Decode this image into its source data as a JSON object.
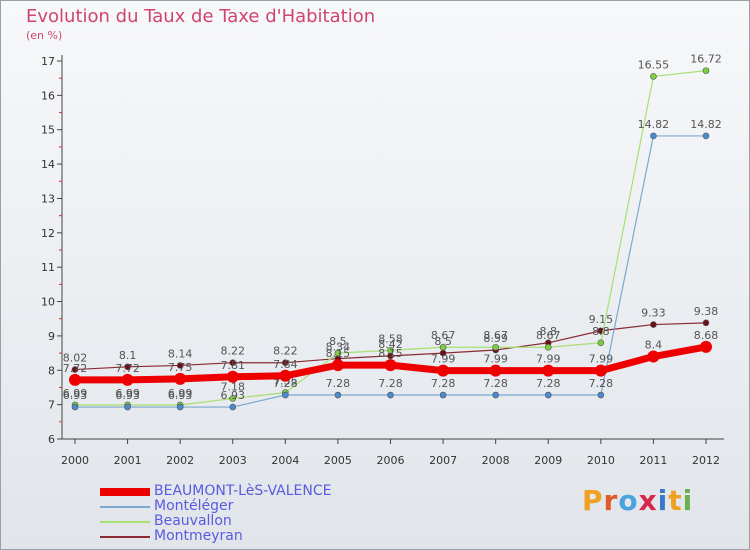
{
  "title": "Evolution du Taux de Taxe d'Habitation",
  "unit_label": "(en %)",
  "logo_text": "Proxiti",
  "logo_colors": [
    "#f0a020",
    "#e05a2a",
    "#4aa3df",
    "#d8284a",
    "#3a7ac8",
    "#f0a020",
    "#6ab04c"
  ],
  "chart_data": {
    "type": "line",
    "x": [
      "2000",
      "2001",
      "2002",
      "2003",
      "2004",
      "2005",
      "2006",
      "2007",
      "2008",
      "2009",
      "2010",
      "2011",
      "2012"
    ],
    "ylim": [
      6,
      17
    ],
    "yticks": [
      "6",
      "7",
      "8",
      "9",
      "10",
      "11",
      "12",
      "13",
      "14",
      "15",
      "16",
      "17"
    ],
    "grid": false,
    "legend_position": "bottom-left",
    "series": [
      {
        "name": "Montmeyran",
        "color": "#8b2a35",
        "marker": "#6a1018",
        "width": 1.2,
        "values": [
          8.02,
          8.1,
          8.14,
          8.22,
          8.22,
          8.34,
          8.42,
          8.5,
          8.59,
          8.8,
          9.15,
          9.33,
          9.38
        ],
        "labels": [
          "8.02",
          "8.1",
          "8.14",
          "8.22",
          "8.22",
          "8.34",
          "8.42",
          "8.5",
          "8.59",
          "8.8",
          "9.15",
          "9.33",
          "9.38"
        ]
      },
      {
        "name": "Beauvallon",
        "color": "#a8e070",
        "marker": "#7ad040",
        "width": 1.2,
        "values": [
          6.99,
          6.99,
          6.99,
          7.18,
          7.35,
          8.5,
          8.58,
          8.67,
          8.67,
          8.67,
          8.8,
          16.55,
          16.72
        ],
        "labels": [
          "6.99",
          "6.99",
          "6.99",
          "7.18",
          "7.35",
          "8.5",
          "8.58",
          "8.67",
          "8.67",
          "8.67",
          "8.8",
          "16.55",
          "16.72"
        ]
      },
      {
        "name": "Montéléger",
        "color": "#7aa8d0",
        "marker": "#4a8ad0",
        "width": 1.2,
        "values": [
          6.93,
          6.93,
          6.93,
          6.93,
          7.28,
          7.28,
          7.28,
          7.28,
          7.28,
          7.28,
          7.28,
          14.82,
          14.82
        ],
        "labels": [
          "6.93",
          "6.93",
          "6.93",
          "6.93",
          "7.28",
          "7.28",
          "7.28",
          "7.28",
          "7.28",
          "7.28",
          "7.28",
          "14.82",
          "14.82"
        ]
      },
      {
        "name": "BEAUMONT-LèS-VALENCE",
        "color": "#ee0000",
        "marker": "#ee0000",
        "width": 7,
        "values": [
          7.72,
          7.72,
          7.75,
          7.81,
          7.84,
          8.15,
          8.15,
          7.99,
          7.99,
          7.99,
          7.99,
          8.4,
          8.68
        ],
        "labels": [
          "7.72",
          "7.72",
          "7.75",
          "7.81",
          "7.84",
          "8.15",
          "8.15",
          "7.99",
          "7.99",
          "7.99",
          "7.99",
          "8.4",
          "8.68"
        ]
      }
    ]
  },
  "legend": [
    {
      "name": "BEAUMONT-LèS-VALENCE",
      "color": "#ee0000",
      "thickness": 8
    },
    {
      "name": "Montéléger",
      "color": "#7aa8d0",
      "thickness": 2
    },
    {
      "name": "Beauvallon",
      "color": "#a8e070",
      "thickness": 2
    },
    {
      "name": "Montmeyran",
      "color": "#8b2a35",
      "thickness": 2
    }
  ]
}
